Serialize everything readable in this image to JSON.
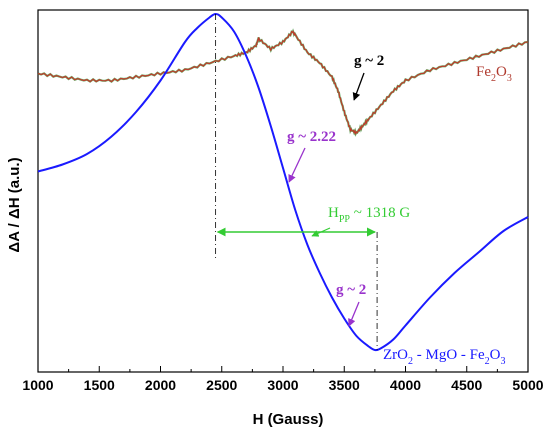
{
  "chart_data": {
    "type": "line",
    "xlabel": "H (Gauss)",
    "ylabel": "ΔA / ΔH  (a.u.)",
    "xlim": [
      1000,
      5000
    ],
    "ylim": [
      0,
      1
    ],
    "x_ticks": [
      "1000",
      "1500",
      "2000",
      "2500",
      "3000",
      "3500",
      "4000",
      "4500",
      "5000"
    ],
    "colors": {
      "zro_series": "#1a1aff",
      "fe_series": "#c0392b",
      "fe_series_overlay": "#2e8b2e",
      "hpp": "#33cc33",
      "g222": "#9933cc",
      "g2_zro": "#9933cc",
      "g2_fe": "#000000"
    },
    "series": [
      {
        "name": "ZrO2 - MgO - Fe2O3",
        "x": [
          1000,
          1200,
          1400,
          1600,
          1800,
          2000,
          2200,
          2300,
          2400,
          2450,
          2500,
          2600,
          2700,
          2800,
          2900,
          3000,
          3100,
          3200,
          3300,
          3400,
          3500,
          3600,
          3700,
          3750,
          3800,
          3900,
          4000,
          4200,
          4400,
          4600,
          4800,
          5000
        ],
        "y": [
          0.55,
          0.57,
          0.6,
          0.65,
          0.72,
          0.81,
          0.92,
          0.96,
          0.99,
          1.0,
          0.99,
          0.95,
          0.88,
          0.79,
          0.68,
          0.56,
          0.44,
          0.34,
          0.26,
          0.19,
          0.13,
          0.08,
          0.05,
          0.04,
          0.045,
          0.07,
          0.11,
          0.19,
          0.26,
          0.32,
          0.38,
          0.42
        ]
      },
      {
        "name": "Fe2O3",
        "x": [
          1000,
          1200,
          1400,
          1600,
          1800,
          2000,
          2200,
          2400,
          2600,
          2700,
          2780,
          2800,
          2900,
          3000,
          3080,
          3100,
          3200,
          3300,
          3400,
          3450,
          3500,
          3550,
          3600,
          3650,
          3700,
          3800,
          3900,
          4000,
          4200,
          4400,
          4600,
          4800,
          5000
        ],
        "y": [
          0.83,
          0.82,
          0.81,
          0.81,
          0.82,
          0.83,
          0.84,
          0.86,
          0.88,
          0.89,
          0.91,
          0.93,
          0.9,
          0.92,
          0.95,
          0.94,
          0.89,
          0.86,
          0.82,
          0.78,
          0.72,
          0.67,
          0.66,
          0.68,
          0.7,
          0.74,
          0.78,
          0.81,
          0.84,
          0.86,
          0.88,
          0.9,
          0.92
        ]
      }
    ],
    "annotations": {
      "g_fe": "g ~ 2",
      "fe_label_main": "Fe",
      "fe_label_sub1": "2",
      "fe_label_mid": "O",
      "fe_label_sub2": "3",
      "g222": "g ~ 2.22",
      "hpp_main": "H",
      "hpp_sub": "PP",
      "hpp_rest": " ~ 1318 G",
      "g2_zro": "g ~ 2",
      "zro_label": [
        {
          "t": "ZrO",
          "sub": false
        },
        {
          "t": "2",
          "sub": true
        },
        {
          "t": " - MgO - Fe",
          "sub": false
        },
        {
          "t": "2",
          "sub": true
        },
        {
          "t": "O",
          "sub": false
        },
        {
          "t": "3",
          "sub": true
        }
      ]
    }
  }
}
